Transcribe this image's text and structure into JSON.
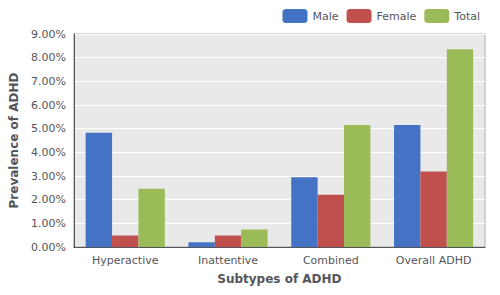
{
  "chart_data": {
    "type": "bar",
    "categories": [
      "Hyperactive",
      "Inattentive",
      "Combined",
      "Overall ADHD"
    ],
    "series": [
      {
        "name": "Male",
        "color": "#4472C4",
        "values": [
          0.0483,
          0.002,
          0.0295,
          0.0516
        ]
      },
      {
        "name": "Female",
        "color": "#C0504D",
        "values": [
          0.0049,
          0.0049,
          0.0221,
          0.0319
        ]
      },
      {
        "name": "Total",
        "color": "#9BBB59",
        "values": [
          0.0246,
          0.0074,
          0.0516,
          0.0836
        ]
      }
    ],
    "xlabel": "Subtypes of ADHD",
    "ylabel": "Prevalence of ADHD",
    "ylim": [
      0,
      0.09
    ],
    "yticks": [
      {
        "value": 0.0,
        "label": "0.00%"
      },
      {
        "value": 0.01,
        "label": "1.00%"
      },
      {
        "value": 0.02,
        "label": "2.00%"
      },
      {
        "value": 0.03,
        "label": "3.00%"
      },
      {
        "value": 0.04,
        "label": "4.00%"
      },
      {
        "value": 0.05,
        "label": "5.00%"
      },
      {
        "value": 0.06,
        "label": "6.00%"
      },
      {
        "value": 0.07,
        "label": "7.00%"
      },
      {
        "value": 0.08,
        "label": "8.00%"
      },
      {
        "value": 0.09,
        "label": "9.00%"
      }
    ],
    "grid": true,
    "legend": "upper right"
  }
}
